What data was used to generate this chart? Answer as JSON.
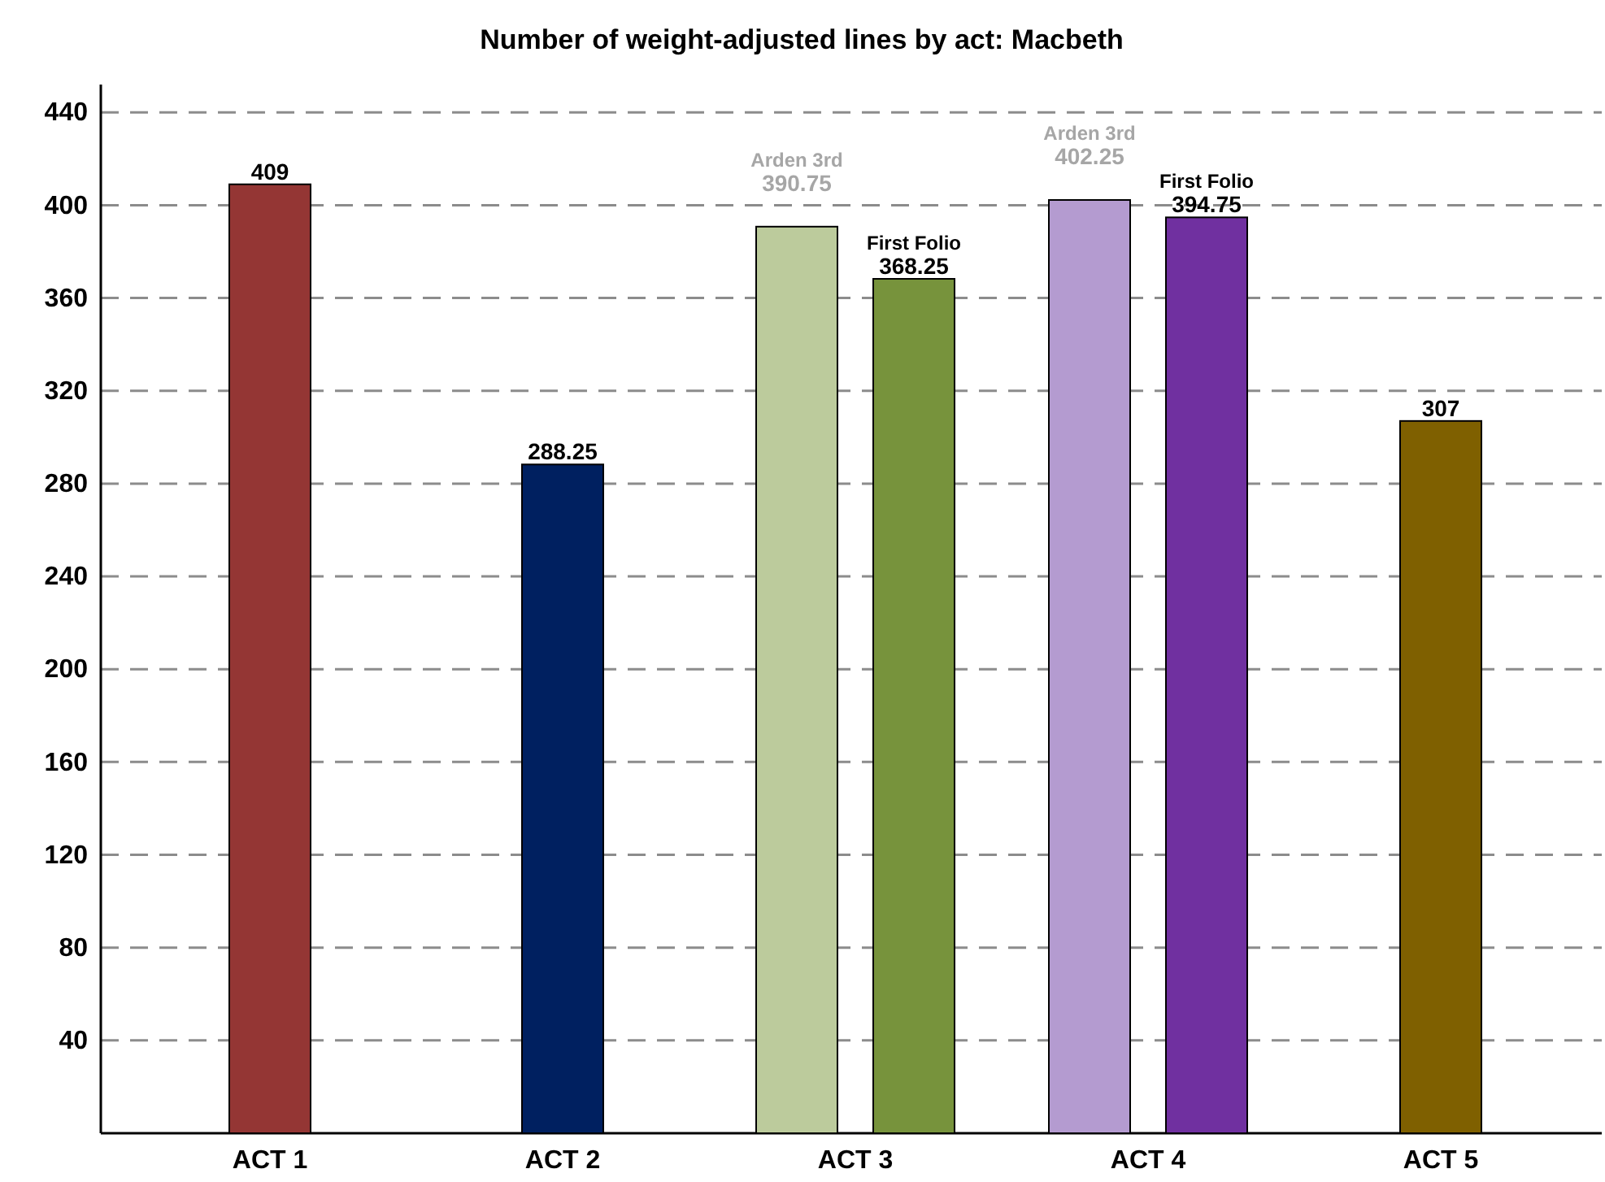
{
  "chart_data": {
    "type": "bar",
    "title": "Number of weight-adjusted lines by act: Macbeth",
    "categories": [
      "ACT 1",
      "ACT 2",
      "ACT 3",
      "ACT 4",
      "ACT 5"
    ],
    "series": [
      {
        "colors": [
          "#943634",
          "#002060",
          null,
          null,
          "#7f6000"
        ],
        "values": [
          409,
          288.25,
          null,
          null,
          307
        ]
      },
      {
        "name": "Arden 3rd",
        "colors": [
          null,
          null,
          "#bccb9c",
          "#b49bd0",
          null
        ],
        "values": [
          null,
          null,
          390.75,
          402.25,
          null
        ]
      },
      {
        "name": "First Folio",
        "colors": [
          null,
          null,
          "#77933c",
          "#7030a0",
          null
        ],
        "values": [
          null,
          null,
          368.25,
          394.75,
          null
        ]
      }
    ],
    "ylim": [
      0,
      452
    ],
    "yticks": [
      40,
      80,
      120,
      160,
      200,
      240,
      280,
      320,
      360,
      400,
      440
    ],
    "grid": "y",
    "data_labels": true
  }
}
